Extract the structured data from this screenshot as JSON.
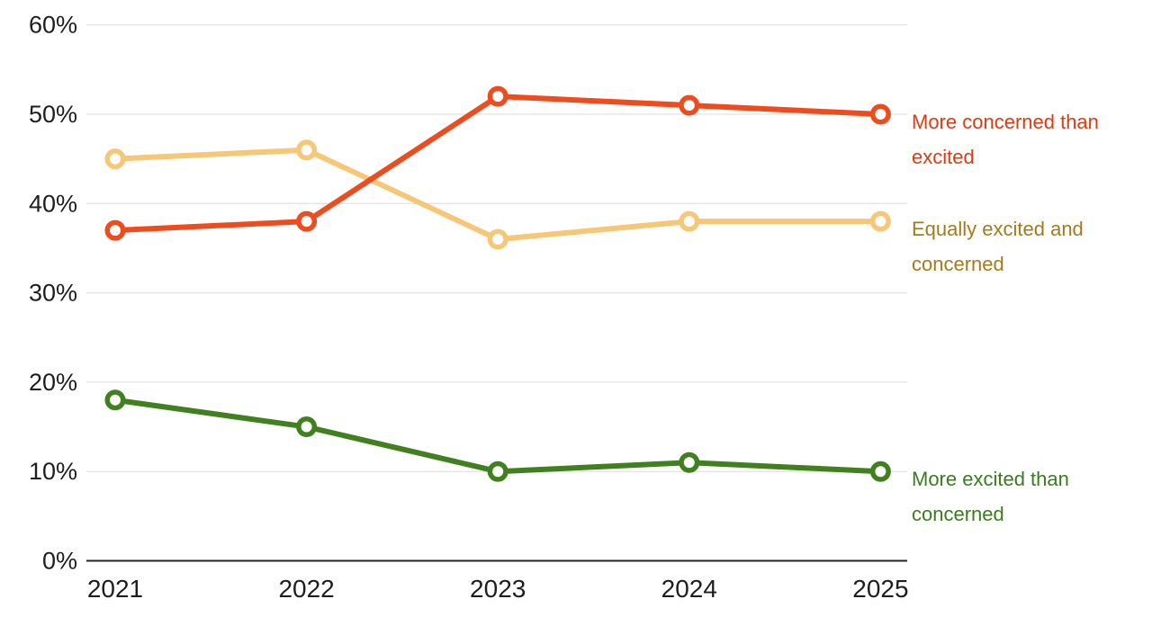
{
  "page": {
    "background": "#ffffff"
  },
  "chart_data": {
    "type": "line",
    "title": "",
    "xlabel": "",
    "ylabel": "",
    "categories": [
      "2021",
      "2022",
      "2023",
      "2024",
      "2025"
    ],
    "series": [
      {
        "name": "Equally excited and concerned",
        "values": [
          45,
          46,
          36,
          38,
          38
        ],
        "line_color": "#F5C777",
        "label_color": "#A47B1B",
        "label_lines": [
          "Equally excited and",
          "concerned"
        ]
      },
      {
        "name": "More excited than concerned",
        "values": [
          18,
          15,
          10,
          11,
          10
        ],
        "line_color": "#41801F",
        "label_color": "#3A7D1E",
        "label_lines": [
          "More excited than",
          "concerned"
        ]
      },
      {
        "name": "More concerned than excited",
        "values": [
          37,
          38,
          52,
          51,
          50
        ],
        "line_color": "#EE4C1E",
        "label_color": "#DE3B12",
        "label_lines": [
          "More concerned than",
          "excited"
        ]
      }
    ],
    "ylim": [
      0,
      60
    ],
    "yticks": [
      0,
      10,
      20,
      30,
      40,
      50,
      60
    ],
    "ytick_labels": [
      "0%",
      "10%",
      "20%",
      "30%",
      "40%",
      "50%",
      "60%"
    ],
    "grid": true,
    "legend_position": "right-of-line-end",
    "marker": "open-circle",
    "colors": {
      "gridline": "#DCDCDC",
      "axis_line": "#222222",
      "tick_text": "#1E1E1E",
      "marker_fill": "#FFFFFF"
    }
  }
}
